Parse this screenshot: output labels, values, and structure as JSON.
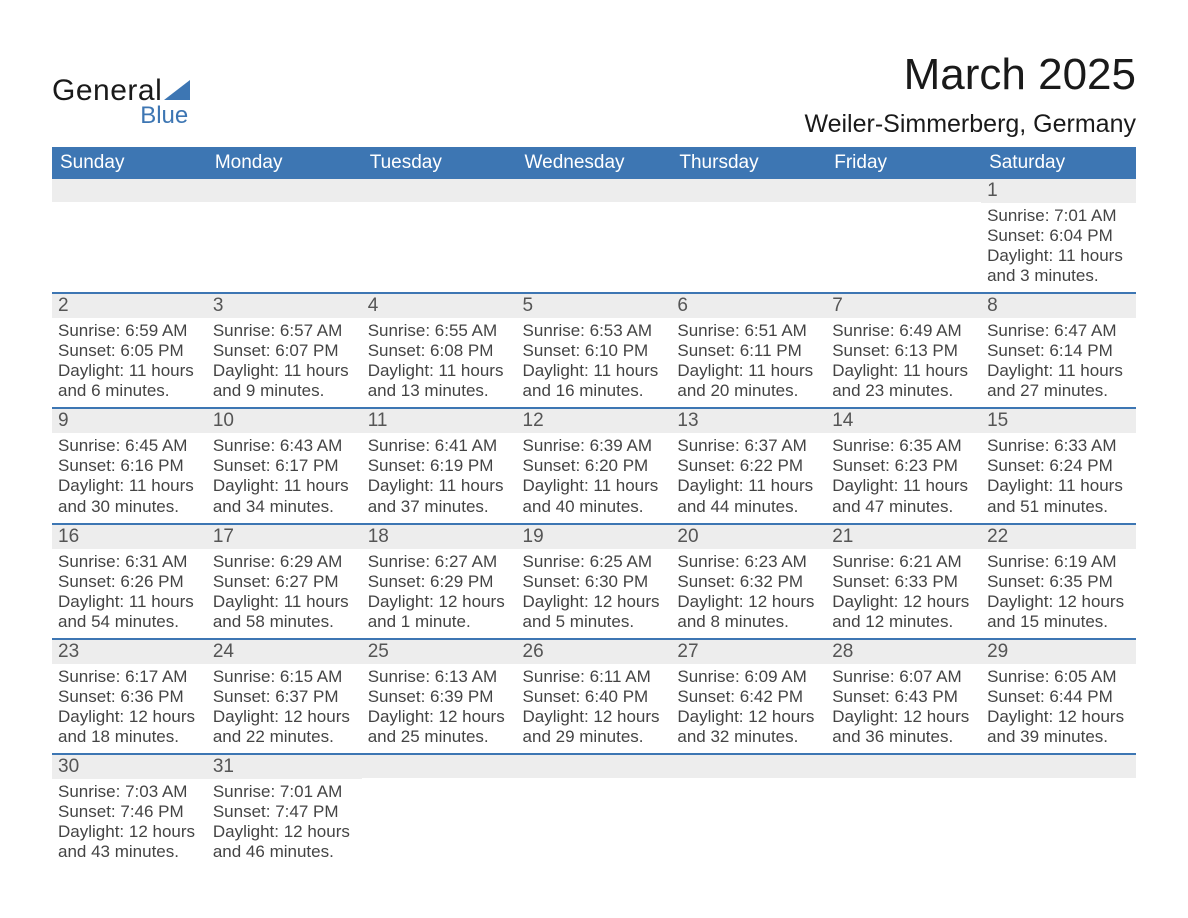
{
  "logo": {
    "word1": "General",
    "word2": "Blue",
    "accent_color": "#3d76b3"
  },
  "header": {
    "title": "March 2025",
    "location": "Weiler-Simmerberg, Germany"
  },
  "colors": {
    "header_bg": "#3d76b3",
    "header_text": "#ffffff",
    "row_sep": "#3d76b3",
    "daynum_bg": "#ededed",
    "body_text": "#444444"
  },
  "weekdays": [
    "Sunday",
    "Monday",
    "Tuesday",
    "Wednesday",
    "Thursday",
    "Friday",
    "Saturday"
  ],
  "weeks": [
    [
      {
        "n": "",
        "sr": "",
        "ss": "",
        "dl": ""
      },
      {
        "n": "",
        "sr": "",
        "ss": "",
        "dl": ""
      },
      {
        "n": "",
        "sr": "",
        "ss": "",
        "dl": ""
      },
      {
        "n": "",
        "sr": "",
        "ss": "",
        "dl": ""
      },
      {
        "n": "",
        "sr": "",
        "ss": "",
        "dl": ""
      },
      {
        "n": "",
        "sr": "",
        "ss": "",
        "dl": ""
      },
      {
        "n": "1",
        "sr": "Sunrise: 7:01 AM",
        "ss": "Sunset: 6:04 PM",
        "dl": "Daylight: 11 hours and 3 minutes."
      }
    ],
    [
      {
        "n": "2",
        "sr": "Sunrise: 6:59 AM",
        "ss": "Sunset: 6:05 PM",
        "dl": "Daylight: 11 hours and 6 minutes."
      },
      {
        "n": "3",
        "sr": "Sunrise: 6:57 AM",
        "ss": "Sunset: 6:07 PM",
        "dl": "Daylight: 11 hours and 9 minutes."
      },
      {
        "n": "4",
        "sr": "Sunrise: 6:55 AM",
        "ss": "Sunset: 6:08 PM",
        "dl": "Daylight: 11 hours and 13 minutes."
      },
      {
        "n": "5",
        "sr": "Sunrise: 6:53 AM",
        "ss": "Sunset: 6:10 PM",
        "dl": "Daylight: 11 hours and 16 minutes."
      },
      {
        "n": "6",
        "sr": "Sunrise: 6:51 AM",
        "ss": "Sunset: 6:11 PM",
        "dl": "Daylight: 11 hours and 20 minutes."
      },
      {
        "n": "7",
        "sr": "Sunrise: 6:49 AM",
        "ss": "Sunset: 6:13 PM",
        "dl": "Daylight: 11 hours and 23 minutes."
      },
      {
        "n": "8",
        "sr": "Sunrise: 6:47 AM",
        "ss": "Sunset: 6:14 PM",
        "dl": "Daylight: 11 hours and 27 minutes."
      }
    ],
    [
      {
        "n": "9",
        "sr": "Sunrise: 6:45 AM",
        "ss": "Sunset: 6:16 PM",
        "dl": "Daylight: 11 hours and 30 minutes."
      },
      {
        "n": "10",
        "sr": "Sunrise: 6:43 AM",
        "ss": "Sunset: 6:17 PM",
        "dl": "Daylight: 11 hours and 34 minutes."
      },
      {
        "n": "11",
        "sr": "Sunrise: 6:41 AM",
        "ss": "Sunset: 6:19 PM",
        "dl": "Daylight: 11 hours and 37 minutes."
      },
      {
        "n": "12",
        "sr": "Sunrise: 6:39 AM",
        "ss": "Sunset: 6:20 PM",
        "dl": "Daylight: 11 hours and 40 minutes."
      },
      {
        "n": "13",
        "sr": "Sunrise: 6:37 AM",
        "ss": "Sunset: 6:22 PM",
        "dl": "Daylight: 11 hours and 44 minutes."
      },
      {
        "n": "14",
        "sr": "Sunrise: 6:35 AM",
        "ss": "Sunset: 6:23 PM",
        "dl": "Daylight: 11 hours and 47 minutes."
      },
      {
        "n": "15",
        "sr": "Sunrise: 6:33 AM",
        "ss": "Sunset: 6:24 PM",
        "dl": "Daylight: 11 hours and 51 minutes."
      }
    ],
    [
      {
        "n": "16",
        "sr": "Sunrise: 6:31 AM",
        "ss": "Sunset: 6:26 PM",
        "dl": "Daylight: 11 hours and 54 minutes."
      },
      {
        "n": "17",
        "sr": "Sunrise: 6:29 AM",
        "ss": "Sunset: 6:27 PM",
        "dl": "Daylight: 11 hours and 58 minutes."
      },
      {
        "n": "18",
        "sr": "Sunrise: 6:27 AM",
        "ss": "Sunset: 6:29 PM",
        "dl": "Daylight: 12 hours and 1 minute."
      },
      {
        "n": "19",
        "sr": "Sunrise: 6:25 AM",
        "ss": "Sunset: 6:30 PM",
        "dl": "Daylight: 12 hours and 5 minutes."
      },
      {
        "n": "20",
        "sr": "Sunrise: 6:23 AM",
        "ss": "Sunset: 6:32 PM",
        "dl": "Daylight: 12 hours and 8 minutes."
      },
      {
        "n": "21",
        "sr": "Sunrise: 6:21 AM",
        "ss": "Sunset: 6:33 PM",
        "dl": "Daylight: 12 hours and 12 minutes."
      },
      {
        "n": "22",
        "sr": "Sunrise: 6:19 AM",
        "ss": "Sunset: 6:35 PM",
        "dl": "Daylight: 12 hours and 15 minutes."
      }
    ],
    [
      {
        "n": "23",
        "sr": "Sunrise: 6:17 AM",
        "ss": "Sunset: 6:36 PM",
        "dl": "Daylight: 12 hours and 18 minutes."
      },
      {
        "n": "24",
        "sr": "Sunrise: 6:15 AM",
        "ss": "Sunset: 6:37 PM",
        "dl": "Daylight: 12 hours and 22 minutes."
      },
      {
        "n": "25",
        "sr": "Sunrise: 6:13 AM",
        "ss": "Sunset: 6:39 PM",
        "dl": "Daylight: 12 hours and 25 minutes."
      },
      {
        "n": "26",
        "sr": "Sunrise: 6:11 AM",
        "ss": "Sunset: 6:40 PM",
        "dl": "Daylight: 12 hours and 29 minutes."
      },
      {
        "n": "27",
        "sr": "Sunrise: 6:09 AM",
        "ss": "Sunset: 6:42 PM",
        "dl": "Daylight: 12 hours and 32 minutes."
      },
      {
        "n": "28",
        "sr": "Sunrise: 6:07 AM",
        "ss": "Sunset: 6:43 PM",
        "dl": "Daylight: 12 hours and 36 minutes."
      },
      {
        "n": "29",
        "sr": "Sunrise: 6:05 AM",
        "ss": "Sunset: 6:44 PM",
        "dl": "Daylight: 12 hours and 39 minutes."
      }
    ],
    [
      {
        "n": "30",
        "sr": "Sunrise: 7:03 AM",
        "ss": "Sunset: 7:46 PM",
        "dl": "Daylight: 12 hours and 43 minutes."
      },
      {
        "n": "31",
        "sr": "Sunrise: 7:01 AM",
        "ss": "Sunset: 7:47 PM",
        "dl": "Daylight: 12 hours and 46 minutes."
      },
      {
        "n": "",
        "sr": "",
        "ss": "",
        "dl": ""
      },
      {
        "n": "",
        "sr": "",
        "ss": "",
        "dl": ""
      },
      {
        "n": "",
        "sr": "",
        "ss": "",
        "dl": ""
      },
      {
        "n": "",
        "sr": "",
        "ss": "",
        "dl": ""
      },
      {
        "n": "",
        "sr": "",
        "ss": "",
        "dl": ""
      }
    ]
  ]
}
